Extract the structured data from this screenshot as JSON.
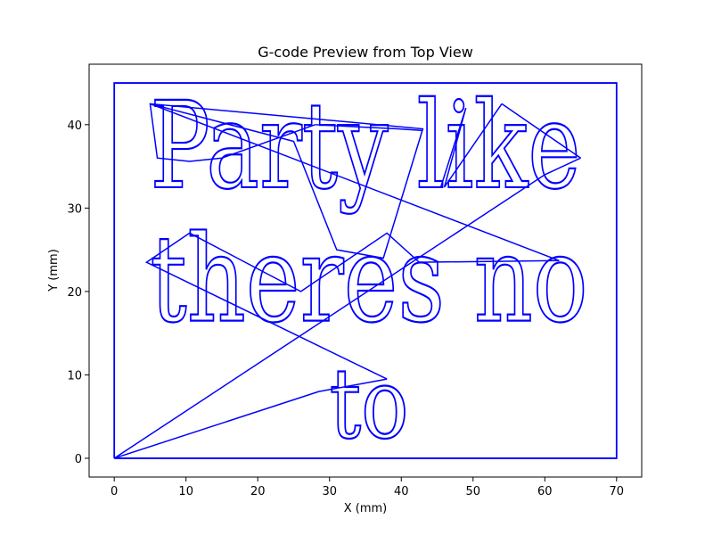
{
  "chart_data": {
    "type": "line",
    "title": "G-code Preview from Top View",
    "xlabel": "X (mm)",
    "ylabel": "Y (mm)",
    "xlim": [
      -3.5,
      73.5
    ],
    "ylim": [
      -2.25,
      47.25
    ],
    "xticks": [
      0,
      10,
      20,
      30,
      40,
      50,
      60,
      70
    ],
    "yticks": [
      0,
      10,
      20,
      30,
      40
    ],
    "grid": false,
    "line_color": "#0000ff",
    "border": {
      "x": [
        0,
        70,
        70,
        0,
        0
      ],
      "y": [
        0,
        0,
        45,
        45,
        0
      ]
    },
    "text_lines": [
      {
        "text": "Party like",
        "x_start": 5,
        "x_end": 65,
        "baseline": 32.5,
        "cap_height": 10.5
      },
      {
        "text": "theres no",
        "x_start": 5,
        "x_end": 66,
        "baseline": 16.5,
        "cap_height": 10.5
      },
      {
        "text": "to",
        "x_start": 30,
        "x_end": 41,
        "baseline": 2.5,
        "cap_height": 8.5
      }
    ],
    "travel_paths": [
      {
        "x": [
          0,
          28.5,
          38
        ],
        "y": [
          0,
          8.0,
          9.5
        ]
      },
      {
        "x": [
          0,
          60.0,
          65
        ],
        "y": [
          0,
          34.0,
          36.0
        ]
      },
      {
        "x": [
          38,
          4.5,
          10.5,
          26.0,
          38.0,
          42.5,
          62.0,
          5.0,
          25.0,
          31.0,
          37.5,
          43.0,
          5.0,
          6.0,
          10.5,
          15.0,
          28.0
        ],
        "y": [
          9.5,
          23.5,
          27.0,
          20.0,
          27.0,
          23.5,
          23.7,
          42.5,
          38.0,
          25.0,
          24.0,
          39.5,
          42.5,
          36.0,
          35.6,
          36.0,
          40.0
        ]
      },
      {
        "x": [
          28.0,
          39.5,
          43.0
        ],
        "y": [
          40.0,
          39.5,
          39.3
        ]
      },
      {
        "x": [
          45.5,
          49.0,
          46.0,
          54.0
        ],
        "y": [
          32.5,
          42.0,
          32.5,
          42.5
        ]
      },
      {
        "x": [
          54.0,
          65.0
        ],
        "y": [
          42.5,
          36.0
        ]
      }
    ]
  }
}
